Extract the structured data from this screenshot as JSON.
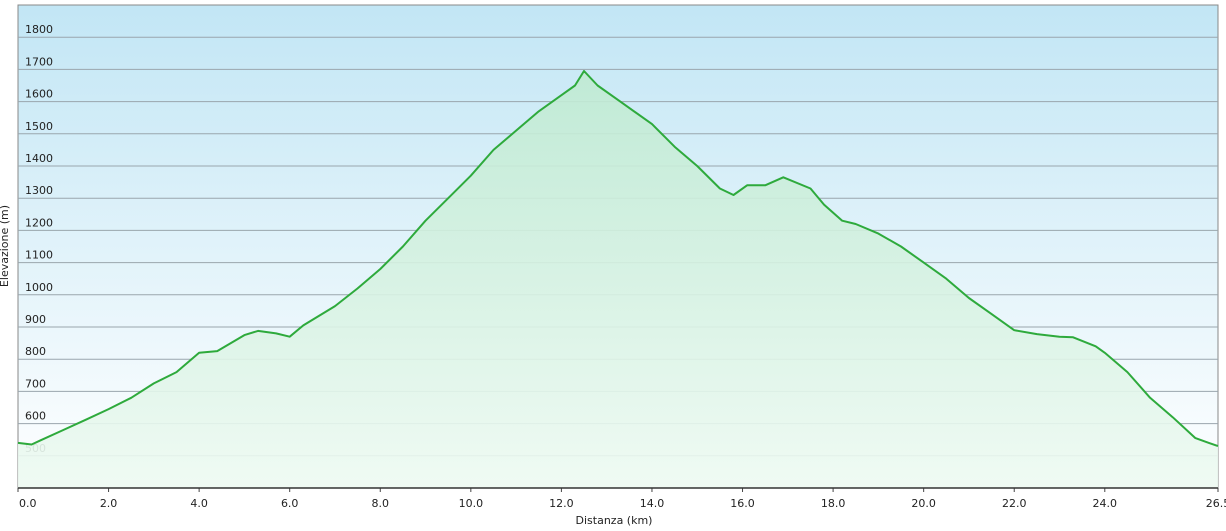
{
  "chart_data": {
    "type": "area",
    "xlabel": "Distanza  (km)",
    "ylabel": "Elevazione (m)",
    "xlim": [
      0,
      26.5
    ],
    "ylim": [
      400,
      1900
    ],
    "xticks": [
      {
        "value": 0,
        "label": "0.0"
      },
      {
        "value": 2,
        "label": "2.0"
      },
      {
        "value": 4,
        "label": "4.0"
      },
      {
        "value": 6,
        "label": "6.0"
      },
      {
        "value": 8,
        "label": "8.0"
      },
      {
        "value": 10,
        "label": "10.0"
      },
      {
        "value": 12,
        "label": "12.0"
      },
      {
        "value": 14,
        "label": "14.0"
      },
      {
        "value": 16,
        "label": "16.0"
      },
      {
        "value": 18,
        "label": "18.0"
      },
      {
        "value": 20,
        "label": "20.0"
      },
      {
        "value": 22,
        "label": "22.0"
      },
      {
        "value": 24,
        "label": "24.0"
      },
      {
        "value": 26.5,
        "label": "26.5"
      }
    ],
    "yticks": [
      500,
      600,
      700,
      800,
      900,
      1000,
      1100,
      1200,
      1300,
      1400,
      1500,
      1600,
      1700,
      1800
    ],
    "grid": true,
    "x": [
      0,
      0.3,
      0.5,
      1.0,
      1.5,
      2.0,
      2.5,
      3.0,
      3.5,
      4.0,
      4.4,
      5.0,
      5.3,
      5.7,
      6.0,
      6.3,
      7.0,
      7.5,
      8.0,
      8.5,
      9.0,
      9.5,
      10.0,
      10.5,
      11.0,
      11.5,
      12.0,
      12.3,
      12.5,
      12.8,
      13.3,
      14.0,
      14.5,
      15.0,
      15.5,
      15.8,
      16.1,
      16.5,
      16.9,
      17.5,
      17.8,
      18.2,
      18.5,
      19.0,
      19.5,
      20.0,
      20.5,
      21.0,
      21.5,
      22.0,
      22.5,
      23.0,
      23.3,
      23.8,
      24.0,
      24.5,
      25.0,
      25.5,
      26.0,
      26.3,
      26.5
    ],
    "series": [
      {
        "color": "#2eaa3c",
        "values": [
          540,
          535,
          548,
          580,
          612,
          645,
          680,
          725,
          760,
          820,
          825,
          875,
          888,
          880,
          870,
          905,
          965,
          1020,
          1080,
          1150,
          1230,
          1300,
          1370,
          1450,
          1510,
          1570,
          1620,
          1650,
          1695,
          1650,
          1600,
          1530,
          1460,
          1400,
          1330,
          1310,
          1340,
          1340,
          1365,
          1330,
          1280,
          1230,
          1220,
          1190,
          1150,
          1100,
          1050,
          990,
          940,
          890,
          878,
          870,
          868,
          840,
          820,
          760,
          680,
          620,
          555,
          540,
          530
        ]
      }
    ]
  }
}
